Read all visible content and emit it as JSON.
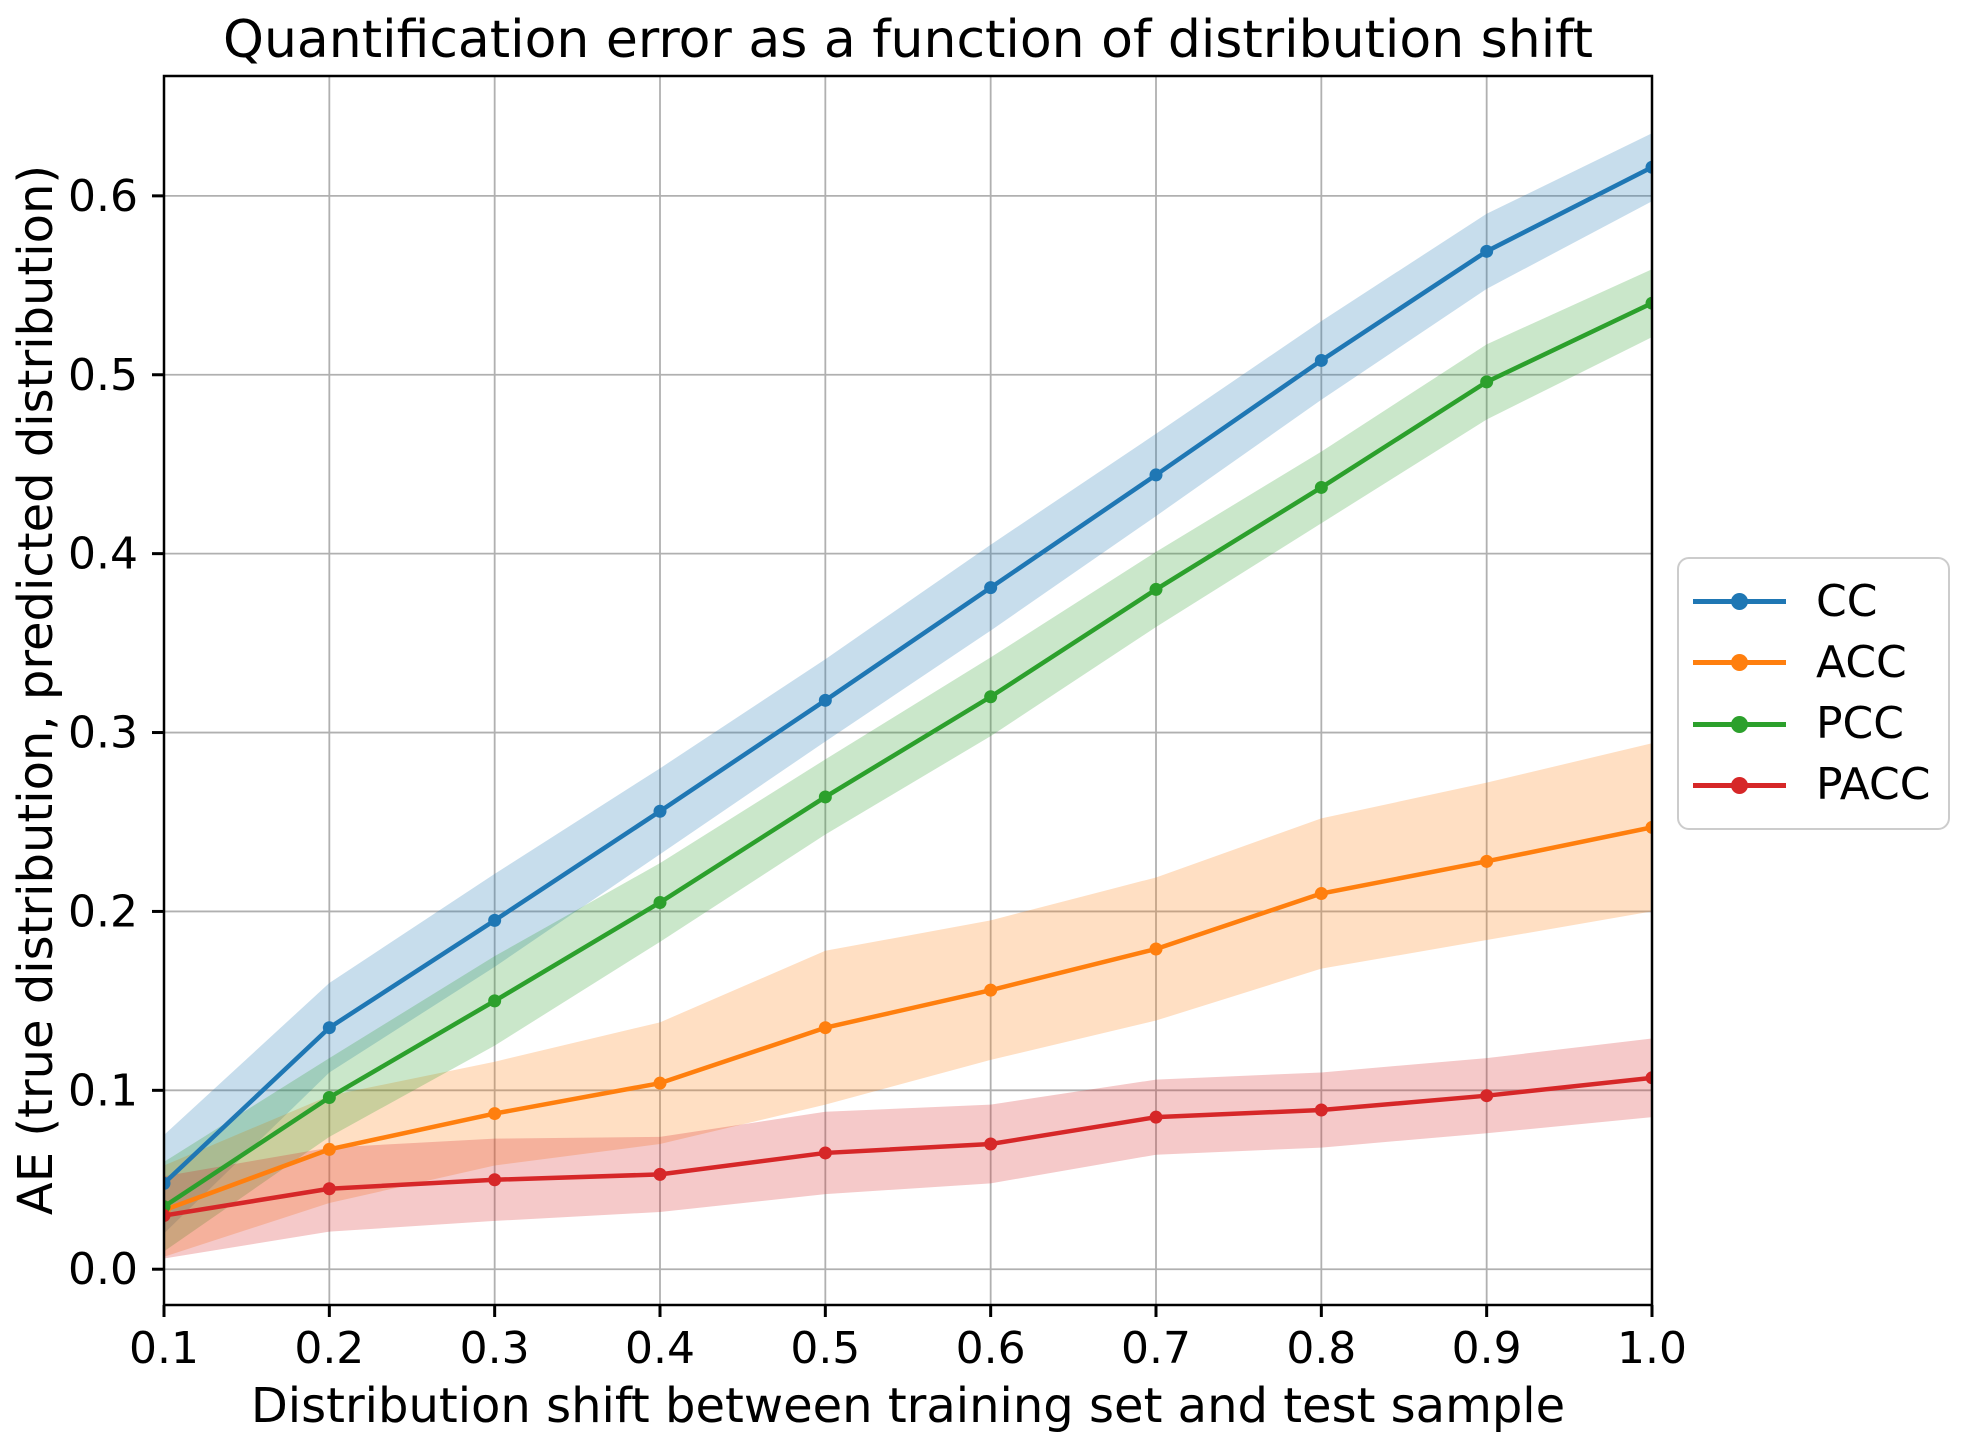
{
  "chart_data": {
    "type": "line",
    "title": "Quantification error as a function of distribution shift",
    "xlabel": "Distribution shift between training set and test sample",
    "ylabel": "AE (true distribution, predicted distribution)",
    "x": [
      0.1,
      0.2,
      0.3,
      0.4,
      0.5,
      0.6,
      0.7,
      0.8,
      0.9,
      1.0
    ],
    "xtick_labels": [
      "0.1",
      "0.2",
      "0.3",
      "0.4",
      "0.5",
      "0.6",
      "0.7",
      "0.8",
      "0.9",
      "1.0"
    ],
    "ytick_values": [
      0.0,
      0.1,
      0.2,
      0.3,
      0.4,
      0.5,
      0.6
    ],
    "ytick_labels": [
      "0.0",
      "0.1",
      "0.2",
      "0.3",
      "0.4",
      "0.5",
      "0.6"
    ],
    "xlim": [
      0.1,
      1.0
    ],
    "ylim": [
      -0.02,
      0.667
    ],
    "grid": true,
    "legend_position": "right",
    "band_alpha": 0.25,
    "colors": {
      "grid": "#b0b0b0",
      "spine": "#000000",
      "background": "#ffffff",
      "legend_border": "#cccccc"
    },
    "series": [
      {
        "name": "CC",
        "color": "#1f77b4",
        "values": [
          0.048,
          0.135,
          0.195,
          0.256,
          0.318,
          0.381,
          0.444,
          0.508,
          0.569,
          0.616
        ],
        "band_lower": [
          0.02,
          0.11,
          0.169,
          0.232,
          0.295,
          0.357,
          0.421,
          0.486,
          0.548,
          0.597
        ],
        "band_upper": [
          0.075,
          0.16,
          0.221,
          0.28,
          0.341,
          0.405,
          0.467,
          0.53,
          0.59,
          0.635
        ]
      },
      {
        "name": "ACC",
        "color": "#ff7f0e",
        "values": [
          0.033,
          0.067,
          0.087,
          0.104,
          0.135,
          0.156,
          0.179,
          0.21,
          0.228,
          0.247
        ],
        "band_lower": [
          0.007,
          0.037,
          0.058,
          0.07,
          0.092,
          0.117,
          0.139,
          0.168,
          0.184,
          0.2
        ],
        "band_upper": [
          0.058,
          0.097,
          0.116,
          0.138,
          0.178,
          0.195,
          0.219,
          0.252,
          0.272,
          0.294
        ]
      },
      {
        "name": "PCC",
        "color": "#2ca02c",
        "values": [
          0.035,
          0.096,
          0.15,
          0.205,
          0.264,
          0.32,
          0.38,
          0.437,
          0.496,
          0.54
        ],
        "band_lower": [
          0.01,
          0.074,
          0.125,
          0.183,
          0.243,
          0.298,
          0.359,
          0.417,
          0.475,
          0.521
        ],
        "band_upper": [
          0.06,
          0.118,
          0.175,
          0.227,
          0.285,
          0.342,
          0.401,
          0.457,
          0.517,
          0.559
        ]
      },
      {
        "name": "PACC",
        "color": "#d62728",
        "values": [
          0.03,
          0.045,
          0.05,
          0.053,
          0.065,
          0.07,
          0.085,
          0.089,
          0.097,
          0.107
        ],
        "band_lower": [
          0.006,
          0.021,
          0.027,
          0.032,
          0.042,
          0.048,
          0.064,
          0.068,
          0.076,
          0.085
        ],
        "band_upper": [
          0.052,
          0.068,
          0.073,
          0.074,
          0.088,
          0.092,
          0.106,
          0.11,
          0.118,
          0.129
        ]
      }
    ]
  }
}
